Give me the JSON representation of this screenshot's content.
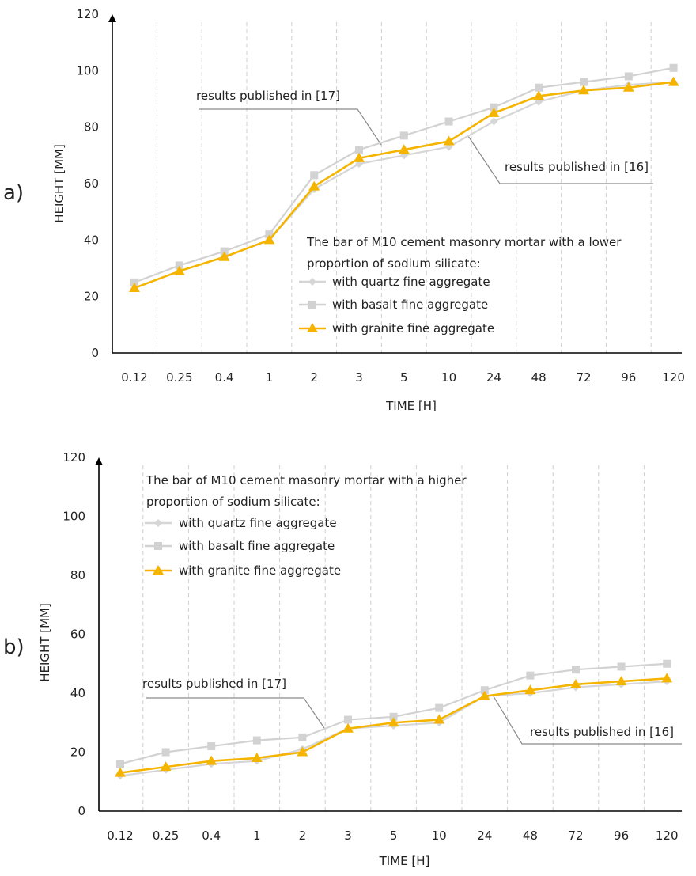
{
  "colors": {
    "quartz": "#d6d6d6",
    "basalt": "#d2d2d2",
    "granite": "#f5b400",
    "grid": "#cfcfcf",
    "axis": "#000000",
    "annot": "#8a8a8a"
  },
  "chart_data": [
    {
      "type": "line",
      "panel_label": "a)",
      "xlabel": "TIME [H]",
      "ylabel": "HEIGHT [MM]",
      "ylim": [
        0,
        120
      ],
      "yticks": [
        "0",
        "20",
        "40",
        "60",
        "80",
        "100",
        "120"
      ],
      "categories": [
        "0.12",
        "0.25",
        "0.4",
        "1",
        "2",
        "3",
        "5",
        "10",
        "24",
        "48",
        "72",
        "96",
        "120"
      ],
      "legend_title": [
        "The bar of M10 cement masonry mortar with a lower",
        "proportion of sodium silicate:"
      ],
      "series": [
        {
          "name": "with quartz fine aggregate",
          "marker": "diamond",
          "values": [
            23,
            29,
            34,
            40,
            58,
            67,
            70,
            73,
            82,
            89,
            93,
            95,
            96
          ]
        },
        {
          "name": "with basalt fine aggregate",
          "marker": "square",
          "values": [
            25,
            31,
            36,
            42,
            63,
            72,
            77,
            82,
            87,
            94,
            96,
            98,
            101
          ]
        },
        {
          "name": "with granite fine aggregate",
          "marker": "triangle",
          "values": [
            23,
            29,
            34,
            40,
            59,
            69,
            72,
            75,
            85,
            91,
            93,
            94,
            96
          ]
        }
      ],
      "annotations": [
        "results published in [17]",
        "results published in [16]"
      ]
    },
    {
      "type": "line",
      "panel_label": "b)",
      "xlabel": "TIME [H]",
      "ylabel": "HEIGHT [MM]",
      "ylim": [
        0,
        120
      ],
      "yticks": [
        "0",
        "20",
        "40",
        "60",
        "80",
        "100",
        "120"
      ],
      "categories": [
        "0.12",
        "0.25",
        "0.4",
        "1",
        "2",
        "3",
        "5",
        "10",
        "24",
        "48",
        "72",
        "96",
        "120"
      ],
      "legend_title": [
        "The bar of M10 cement masonry mortar with a higher",
        "proportion of sodium silicate:"
      ],
      "series": [
        {
          "name": "with quartz fine aggregate",
          "marker": "diamond",
          "values": [
            12,
            14,
            16,
            17,
            21,
            28,
            29,
            30,
            39,
            40,
            42,
            43,
            44
          ]
        },
        {
          "name": "with basalt fine aggregate",
          "marker": "square",
          "values": [
            16,
            20,
            22,
            24,
            25,
            31,
            32,
            35,
            41,
            46,
            48,
            49,
            50
          ]
        },
        {
          "name": "with granite fine aggregate",
          "marker": "triangle",
          "values": [
            13,
            15,
            17,
            18,
            20,
            28,
            30,
            31,
            39,
            41,
            43,
            44,
            45
          ]
        }
      ],
      "annotations": [
        "results published in [17]",
        "results published in [16]"
      ]
    }
  ]
}
